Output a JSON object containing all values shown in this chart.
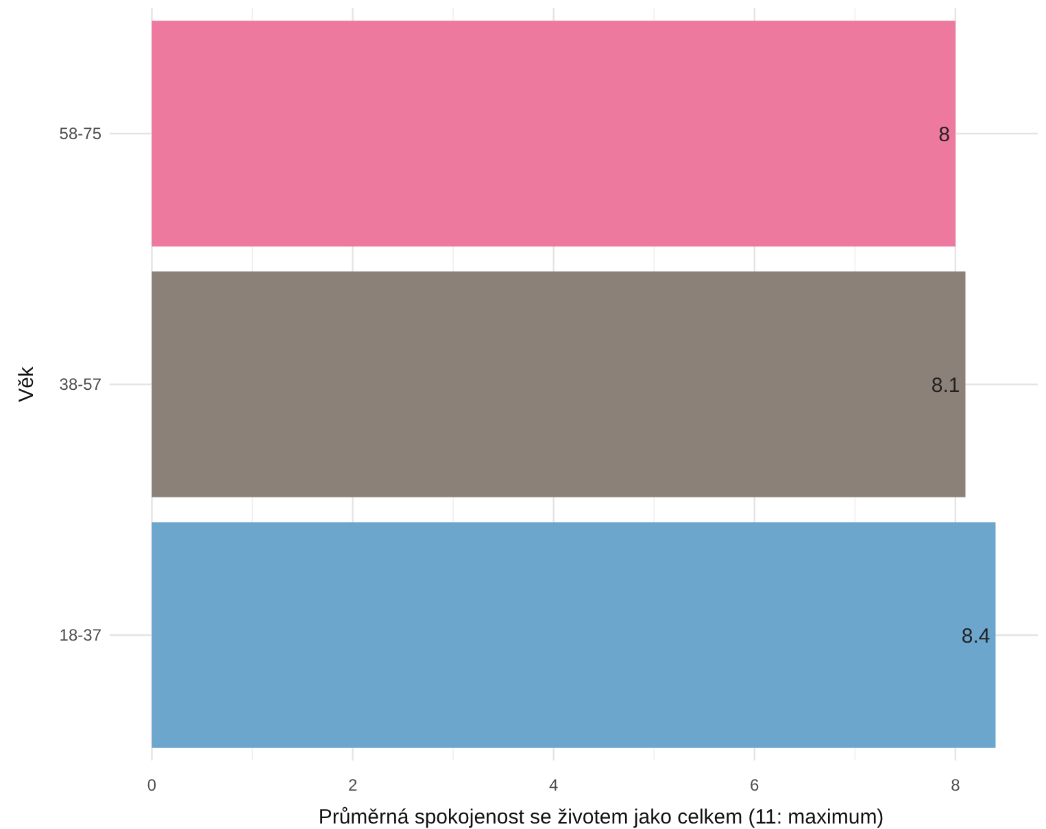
{
  "chart_data": {
    "type": "bar",
    "orientation": "horizontal",
    "categories": [
      "58-75",
      "38-57",
      "18-37"
    ],
    "values": [
      8,
      8.1,
      8.4
    ],
    "colors": [
      "#ee799f",
      "#8b8178",
      "#6ca6cd"
    ],
    "data_labels": true,
    "xlabel": "Průměrná spokojenost se životem jako celkem (11: maximum)",
    "ylabel": "Věk",
    "xlim": [
      -0.42,
      8.82
    ],
    "xticks": [
      0,
      2,
      4,
      6,
      8
    ],
    "grid": true
  }
}
